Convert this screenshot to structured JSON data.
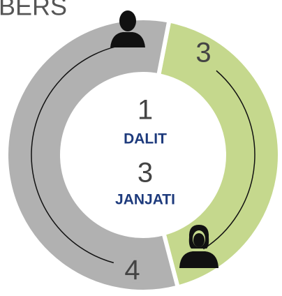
{
  "chart_data": {
    "type": "pie",
    "title": "BERS",
    "values": [
      3,
      4
    ],
    "colors": [
      "#c5d88d",
      "#b1b1b1"
    ],
    "donut": true,
    "annotations": [
      {
        "value": 1,
        "text": "DALIT"
      },
      {
        "value": 3,
        "text": "JANJATI"
      }
    ]
  }
}
